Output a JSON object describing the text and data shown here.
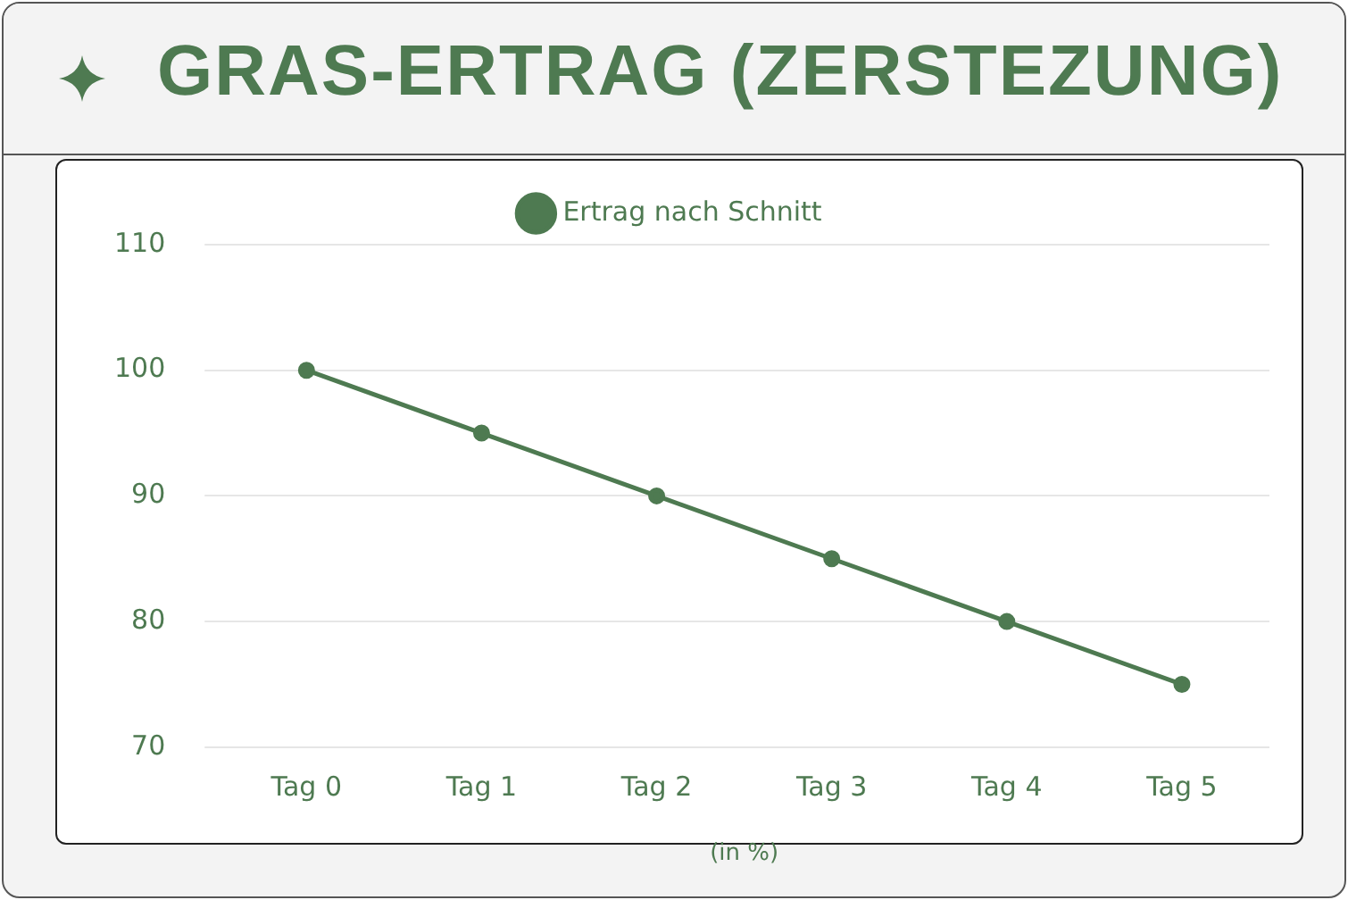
{
  "chart_data": {
    "type": "line",
    "title": "GRAS-ERTRAG (ZERSTEZUNG)",
    "xlabel": "(in %)",
    "categories": [
      "Tag 0",
      "Tag 1",
      "Tag 2",
      "Tag 3",
      "Tag 4",
      "Tag 5"
    ],
    "series": [
      {
        "name": "Ertrag nach Schnitt",
        "color": "#4e7a51",
        "values": [
          100,
          95,
          90,
          85,
          80,
          75
        ]
      }
    ],
    "ylim": [
      70,
      110
    ],
    "yticks": [
      70,
      80,
      90,
      100,
      110
    ],
    "grid": "y",
    "legend": "top",
    "marker": "circle",
    "line_style": "solid"
  }
}
